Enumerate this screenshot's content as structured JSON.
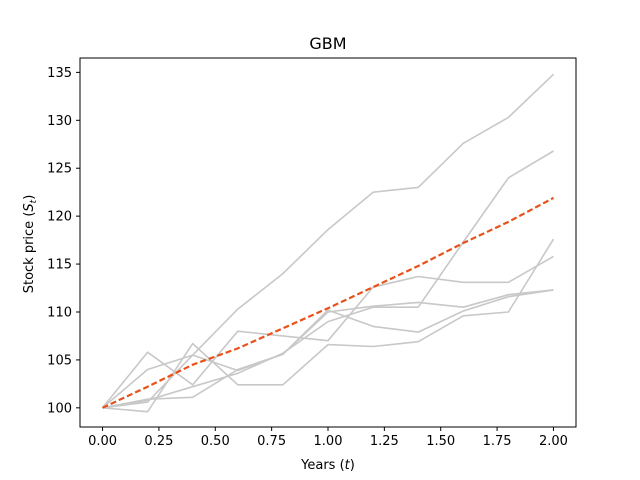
{
  "chart_data": {
    "type": "line",
    "title": "GBM",
    "xlabel": "Years",
    "xlabel_var": "t",
    "ylabel": "Stock price",
    "ylabel_var": "S",
    "ylabel_sub": "t",
    "xlim": [
      -0.1,
      2.1
    ],
    "ylim": [
      98,
      136.5
    ],
    "xticks": [
      0.0,
      0.25,
      0.5,
      0.75,
      1.0,
      1.25,
      1.5,
      1.75,
      2.0
    ],
    "xtick_labels": [
      "0.00",
      "0.25",
      "0.50",
      "0.75",
      "1.00",
      "1.25",
      "1.50",
      "1.75",
      "2.00"
    ],
    "yticks": [
      100,
      105,
      110,
      115,
      120,
      125,
      130,
      135
    ],
    "ytick_labels": [
      "100",
      "105",
      "110",
      "115",
      "120",
      "125",
      "130",
      "135"
    ],
    "grid": false,
    "x": [
      0.0,
      0.2,
      0.4,
      0.6,
      0.8,
      1.0,
      1.2,
      1.4,
      1.6,
      1.8,
      2.0
    ],
    "series": [
      {
        "values": [
          100.0,
          100.6,
          105.5,
          110.3,
          114.0,
          118.6,
          122.5,
          123.0,
          127.6,
          130.3,
          134.8
        ]
      },
      {
        "values": [
          100.0,
          100.8,
          102.2,
          103.6,
          105.7,
          109.0,
          110.5,
          110.5,
          117.3,
          124.0,
          126.8
        ]
      },
      {
        "values": [
          100.0,
          105.8,
          102.4,
          108.0,
          107.5,
          107.0,
          112.6,
          113.7,
          113.1,
          113.1,
          115.8
        ]
      },
      {
        "values": [
          100.0,
          104.0,
          105.5,
          103.9,
          105.6,
          110.0,
          110.6,
          111.0,
          110.5,
          111.8,
          112.3
        ]
      },
      {
        "values": [
          100.0,
          99.6,
          106.7,
          102.4,
          102.4,
          106.6,
          106.4,
          106.9,
          109.6,
          110.0,
          117.6
        ]
      },
      {
        "values": [
          100.0,
          100.9,
          101.1,
          104.0,
          105.6,
          110.2,
          108.5,
          107.9,
          110.1,
          111.6,
          112.3
        ]
      }
    ],
    "mean": {
      "values": [
        100.0,
        102.2,
        104.5,
        106.2,
        108.3,
        110.4,
        112.6,
        114.8,
        117.2,
        119.4,
        121.9
      ]
    },
    "colors": {
      "paths": "#c8c8c8",
      "mean": "#e8521a",
      "mean_dash": "#f07a1e"
    }
  }
}
